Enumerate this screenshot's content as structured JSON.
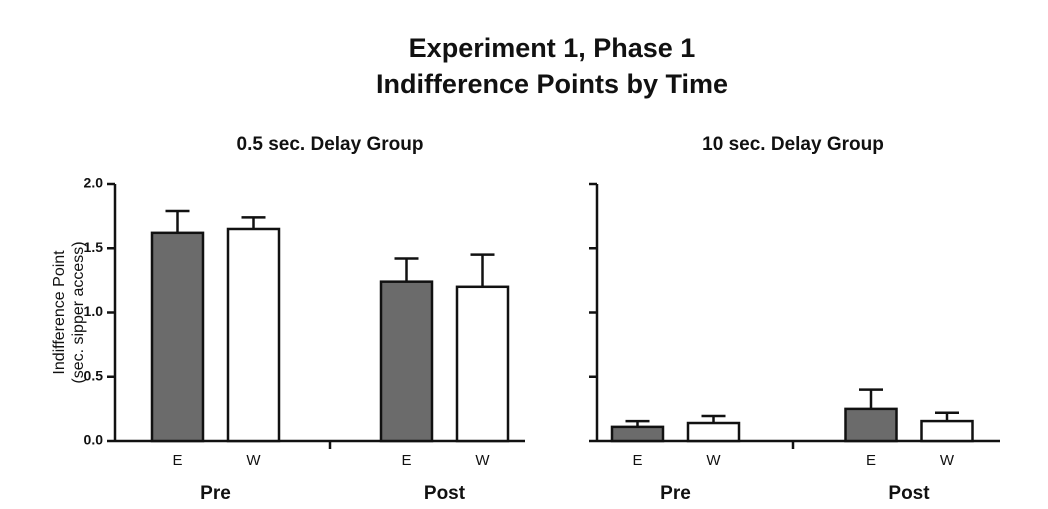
{
  "title": [
    "Experiment 1, Phase 1",
    "Indifference Points by Time"
  ],
  "chart_data": [
    {
      "type": "bar",
      "title": "0.5 sec. Delay Group",
      "ylabel": [
        "Indifference Point",
        "(sec. sipper access)"
      ],
      "categories": [
        "Pre",
        "Post"
      ],
      "series": [
        {
          "name": "E",
          "color": "#6b6b6b",
          "values": [
            1.62,
            1.24
          ],
          "errors": [
            0.17,
            0.18
          ]
        },
        {
          "name": "W",
          "color": "#ffffff",
          "values": [
            1.65,
            1.2
          ],
          "errors": [
            0.09,
            0.25
          ]
        }
      ],
      "ylim": [
        0,
        2
      ],
      "yticks": [
        {
          "value": 0,
          "label": "0.0"
        },
        {
          "value": 0.5,
          "label": "0.5"
        },
        {
          "value": 1,
          "label": "1.0"
        },
        {
          "value": 1.5,
          "label": "1.5"
        },
        {
          "value": 2,
          "label": "2.0"
        }
      ],
      "tick_labels": true
    },
    {
      "type": "bar",
      "title": "10 sec. Delay Group",
      "categories": [
        "Pre",
        "Post"
      ],
      "series": [
        {
          "name": "E",
          "color": "#6b6b6b",
          "values": [
            0.11,
            0.25
          ],
          "errors": [
            0.045,
            0.15
          ]
        },
        {
          "name": "W",
          "color": "#ffffff",
          "values": [
            0.14,
            0.155
          ],
          "errors": [
            0.055,
            0.065
          ]
        }
      ],
      "ylim": [
        0,
        2
      ],
      "yticks": [
        0,
        0.5,
        1,
        1.5,
        2
      ],
      "tick_labels": false
    }
  ]
}
